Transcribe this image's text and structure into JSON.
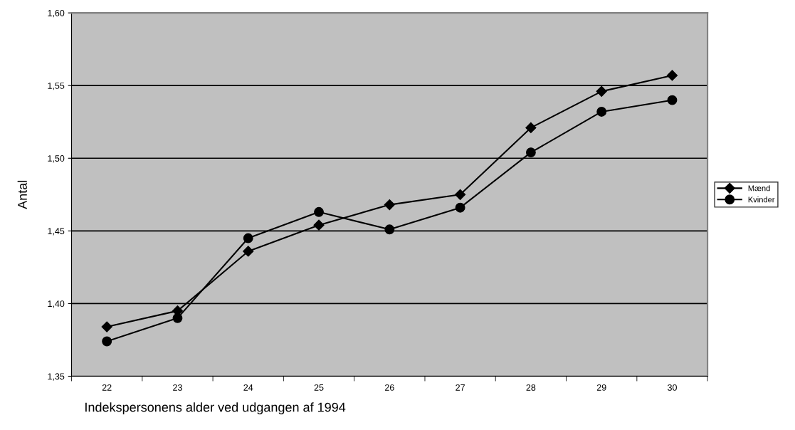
{
  "chart_data": {
    "type": "line",
    "ylabel": "Antal",
    "xlabel": "Indekspersonens alder ved udgangen af 1994",
    "categories": [
      "22",
      "23",
      "24",
      "25",
      "26",
      "27",
      "28",
      "29",
      "30"
    ],
    "series": [
      {
        "name": "Mænd",
        "color": "#000000",
        "marker": "diamond",
        "values": [
          1.384,
          1.395,
          1.436,
          1.454,
          1.468,
          1.475,
          1.521,
          1.546,
          1.557
        ]
      },
      {
        "name": "Kvinder",
        "color": "#000000",
        "marker": "circle",
        "values": [
          1.374,
          1.39,
          1.445,
          1.463,
          1.451,
          1.466,
          1.504,
          1.532,
          1.54
        ]
      }
    ],
    "ylim": [
      1.35,
      1.6
    ],
    "yticks": [
      {
        "value": 1.35,
        "label": "1,35"
      },
      {
        "value": 1.4,
        "label": "1,40"
      },
      {
        "value": 1.45,
        "label": "1,45"
      },
      {
        "value": 1.5,
        "label": "1,50"
      },
      {
        "value": 1.55,
        "label": "1,55"
      },
      {
        "value": 1.6,
        "label": "1,60"
      }
    ],
    "grid": "y",
    "legend": "right",
    "line_style": "solid"
  }
}
